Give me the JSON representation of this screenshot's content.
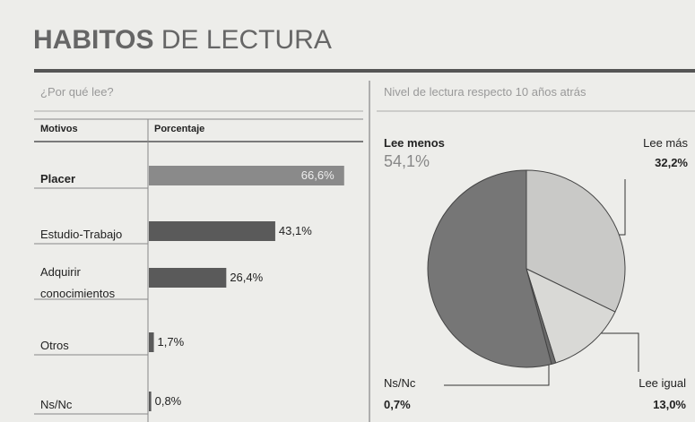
{
  "title": [
    "HABITOS",
    "DE LECTURA"
  ],
  "chart_data": [
    {
      "type": "bar",
      "title": "¿Por qué lee?",
      "headers": [
        "Motivos",
        "Porcentaje"
      ],
      "categories": [
        "Placer",
        "Estudio-Trabajo",
        "Adquirir conocimientos",
        "Otros",
        "Ns/Nc"
      ],
      "values": [
        66.6,
        43.1,
        26.4,
        1.7,
        0.8
      ],
      "value_labels": [
        "66,6%",
        "43,1%",
        "26,4%",
        "1,7%",
        "0,8%"
      ],
      "colors": [
        "#8a8a8a",
        "#5a5a5a",
        "#5a5a5a",
        "#5a5a5a",
        "#5a5a5a"
      ]
    },
    {
      "type": "pie",
      "title": "Nivel de lectura respecto 10 años atrás",
      "categories": [
        "Lee más",
        "Lee igual",
        "Ns/Nc",
        "Lee menos"
      ],
      "values": [
        32.2,
        13.0,
        0.7,
        54.1
      ],
      "value_labels": [
        "32,2%",
        "13,0%",
        "0,7%",
        "54,1%"
      ],
      "colors": [
        "#c9c9c7",
        "#d9d9d6",
        "#6a6a6a",
        "#767676"
      ]
    }
  ]
}
